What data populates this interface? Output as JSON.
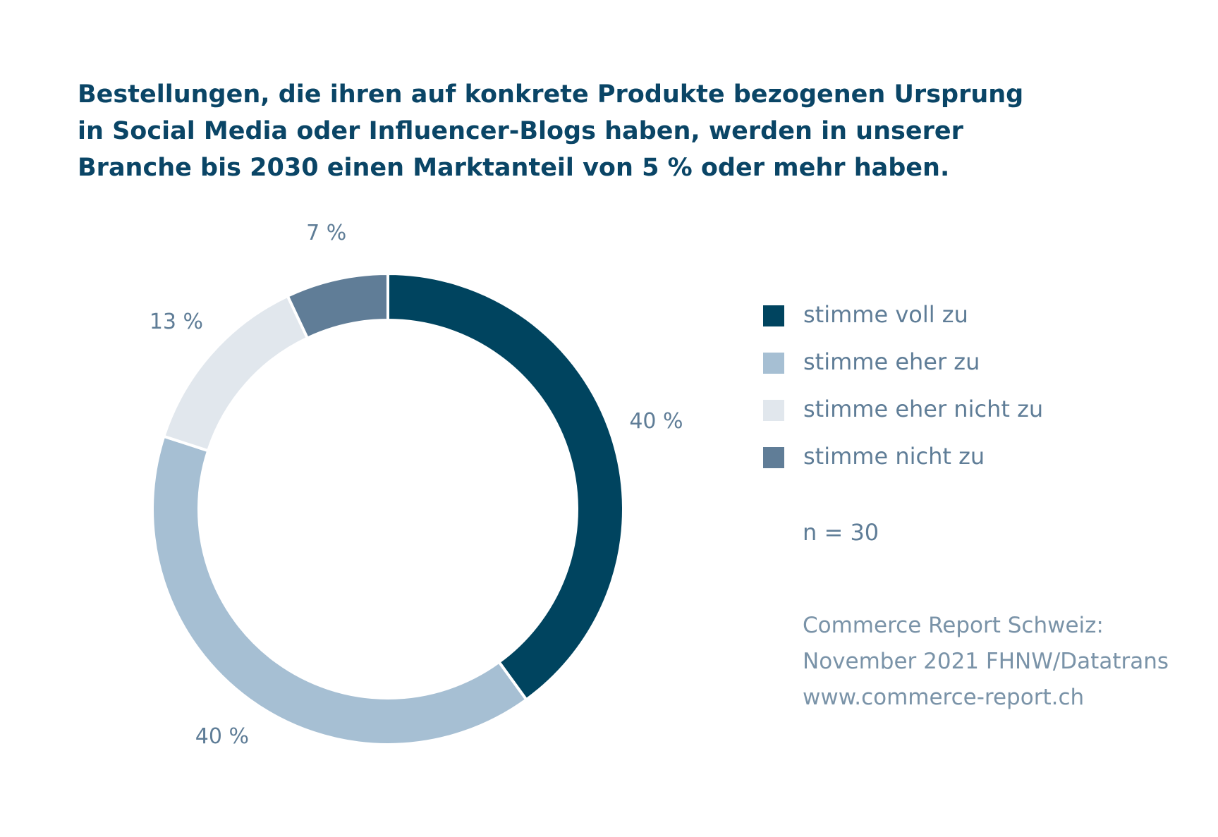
{
  "colors": {
    "title": "#0a4566",
    "text": "#5f7d97",
    "source_text": "#7a93a8",
    "background": "#ffffff"
  },
  "chart_data": {
    "type": "pie",
    "donut": true,
    "title_lines": [
      "Bestellungen, die ihren auf konkrete Produkte bezogenen Ursprung",
      "in Social Media oder Influencer-Blogs haben, werden in unserer",
      "Branche bis 2030 einen Marktanteil von 5 % oder mehr haben."
    ],
    "slices": [
      {
        "name": "stimme voll zu",
        "value": 40,
        "label": "40 %",
        "color": "#00445f"
      },
      {
        "name": "stimme eher zu",
        "value": 40,
        "label": "40 %",
        "color": "#a6bfd3"
      },
      {
        "name": "stimme eher nicht zu",
        "value": 13,
        "label": "13 %",
        "color": "#e1e7ed"
      },
      {
        "name": "stimme nicht zu",
        "value": 7,
        "label": "7 %",
        "color": "#607d97"
      }
    ],
    "legend_position": "right",
    "n_label": "n = 30"
  },
  "source": {
    "lines": [
      "Commerce Report Schweiz:",
      "November 2021 FHNW/Datatrans",
      "www.commerce-report.ch"
    ]
  }
}
